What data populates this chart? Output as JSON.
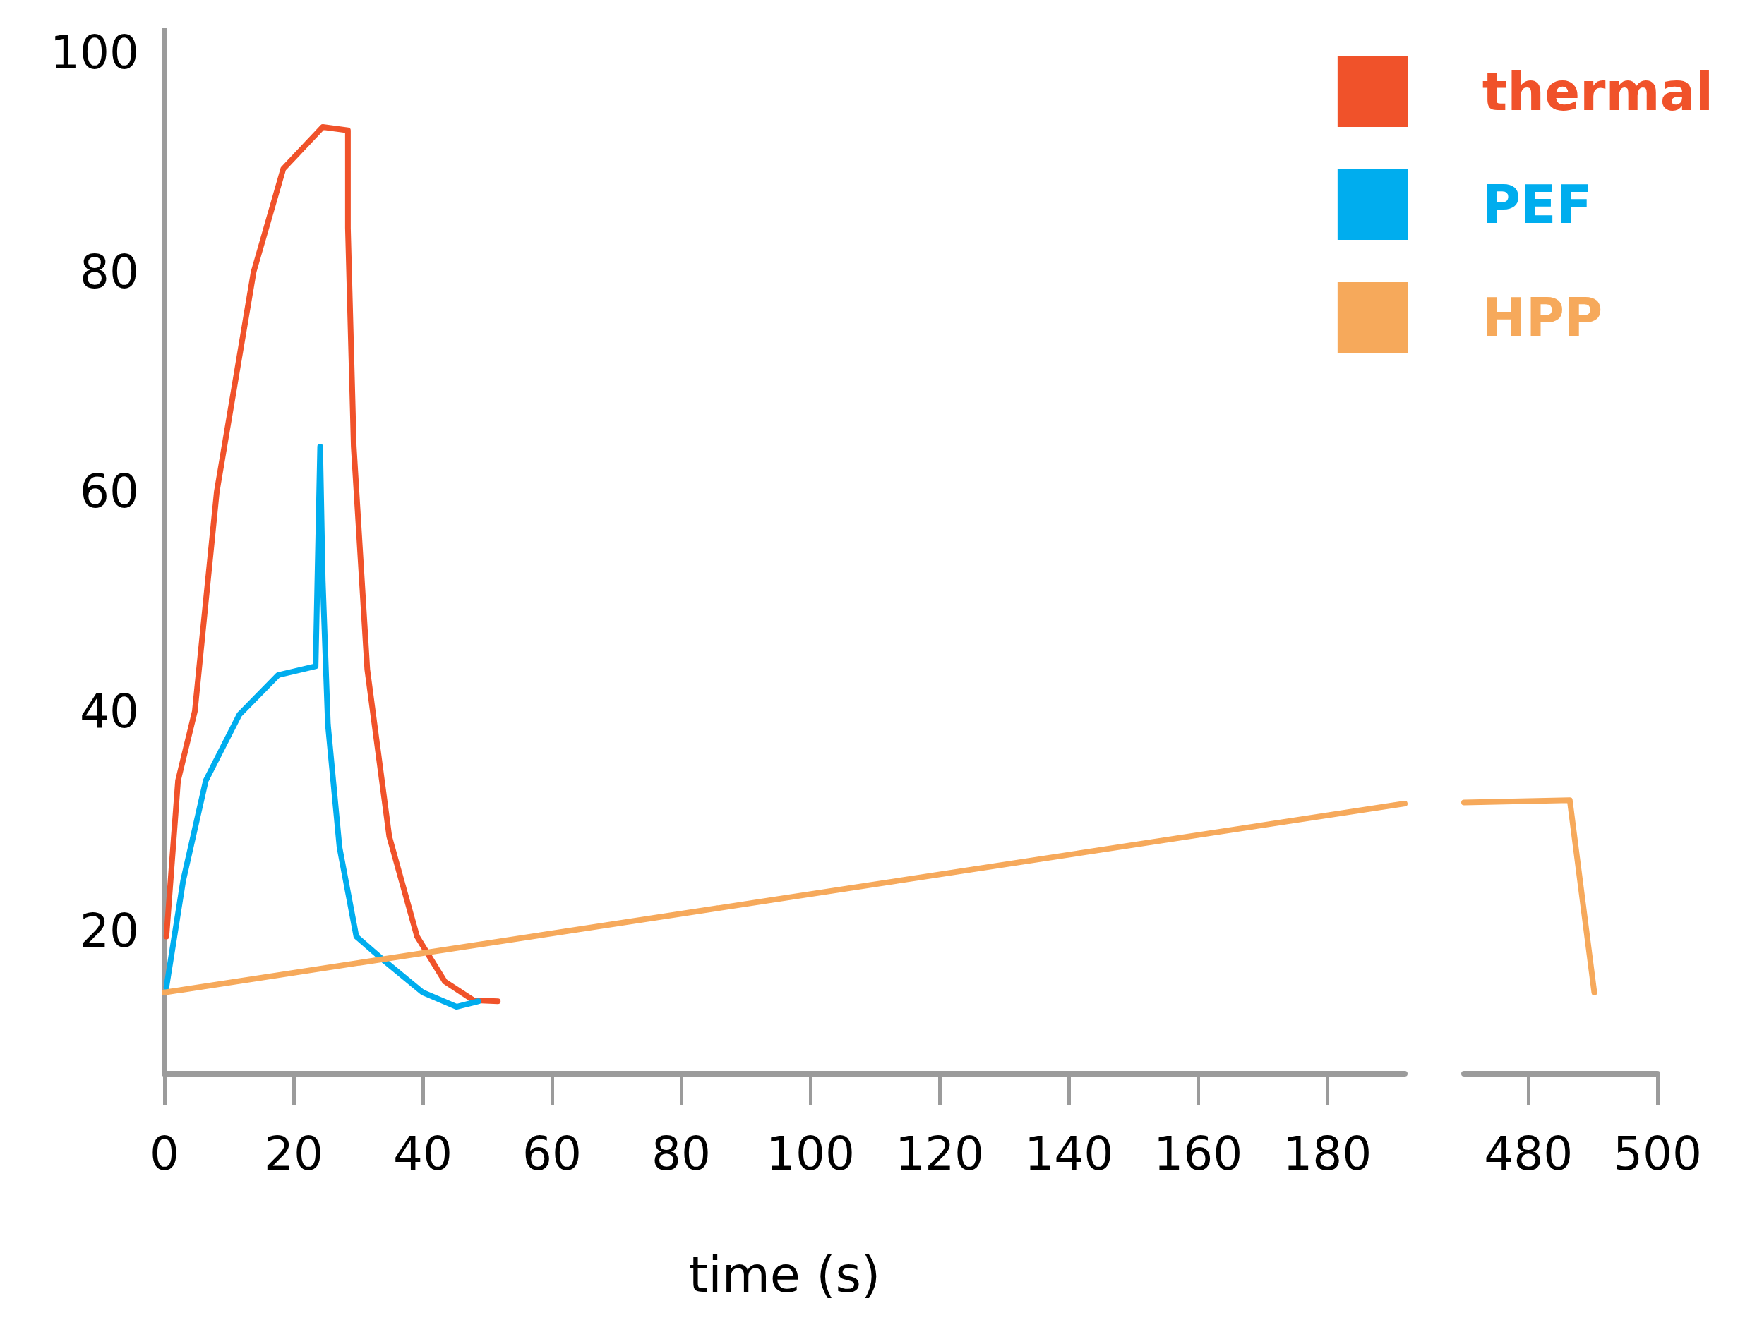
{
  "chart_data": [
    {
      "type": "line",
      "xlabel": "time (s)",
      "xlim": [
        0,
        192
      ],
      "xticks": [
        0,
        20,
        40,
        60,
        80,
        100,
        120,
        140,
        160,
        180
      ],
      "ylim": [
        7,
        102
      ],
      "yticks": [
        20,
        40,
        60,
        80,
        100
      ],
      "legend": "top right",
      "grid": false,
      "marker": "none",
      "line_style": "solid",
      "series": [
        {
          "name": "thermal",
          "color": "#f0522a",
          "x": [
            0.3,
            2.1,
            4.7,
            8.1,
            13.8,
            18.4,
            24.5,
            28.4,
            28.4,
            29.3,
            31.4,
            34.8,
            39.1,
            43.4,
            47.8,
            51.6
          ],
          "values": [
            19.5,
            33.7,
            40,
            60,
            80,
            89.4,
            93.2,
            92.9,
            84,
            64.1,
            43.8,
            28.6,
            19.5,
            15.4,
            13.7,
            13.6
          ]
        },
        {
          "name": "PEF",
          "color": "#00adee",
          "x": [
            0.3,
            2.9,
            6.4,
            11.6,
            17.6,
            23.4,
            24.1,
            24.5,
            25.3,
            27.1,
            29.7,
            34.0,
            40.0,
            45.2,
            48.6
          ],
          "values": [
            14.9,
            24.6,
            33.7,
            39.7,
            43.3,
            44.1,
            64.1,
            51.9,
            38.8,
            27.6,
            19.5,
            17.3,
            14.4,
            13.1,
            13.6
          ]
        },
        {
          "name": "HPP",
          "color": "#f6a95b",
          "x": [
            0,
            192
          ],
          "values": [
            14.4,
            31.6
          ]
        }
      ]
    },
    {
      "type": "line",
      "xlim": [
        470,
        500
      ],
      "xticks": [
        480,
        500
      ],
      "ylim": [
        7,
        100
      ],
      "yticks": [
        20,
        40,
        60,
        80,
        100
      ],
      "tick_labels": "x",
      "grid": false,
      "marker": "none",
      "line_style": "solid",
      "series": [
        {
          "color": "#f6a95b",
          "x": [
            470,
            486.4,
            490.2
          ],
          "values": [
            31.7,
            31.9,
            14.4
          ]
        }
      ]
    }
  ]
}
